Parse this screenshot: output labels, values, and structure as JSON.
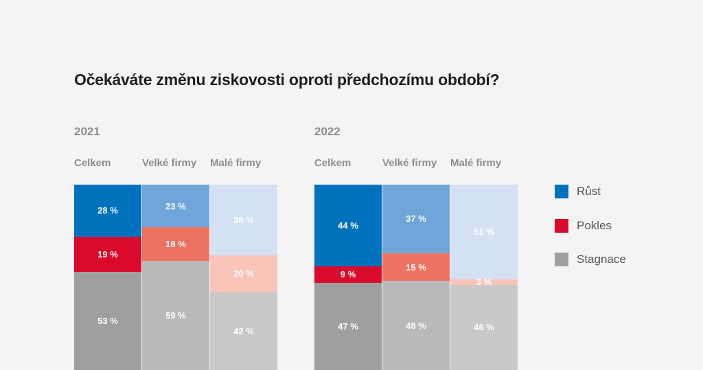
{
  "title": "Očekáváte změnu ziskovosti oproti předchozímu období?",
  "colors": {
    "rust": [
      "#0071bc",
      "#6fa6da",
      "#d3e1f3"
    ],
    "pokles": [
      "#d90a2c",
      "#ee7260",
      "#f9c5b9"
    ],
    "stagnace": [
      "#9f9f9f",
      "#b9b9b9",
      "#c9c9c9"
    ]
  },
  "legend": [
    {
      "label": "Růst",
      "color": "#0071bc"
    },
    {
      "label": "Pokles",
      "color": "#d90a2c"
    },
    {
      "label": "Stagnace",
      "color": "#9f9f9f"
    }
  ],
  "chart_data": [
    {
      "type": "bar",
      "stacked": true,
      "title": "2021",
      "categories": [
        "Celkem",
        "Velké firmy",
        "Malé firmy"
      ],
      "series": [
        {
          "name": "Růst",
          "values": [
            28,
            23,
            38
          ],
          "labels": [
            "28 %",
            "23 %",
            "38 %"
          ]
        },
        {
          "name": "Pokles",
          "values": [
            19,
            18,
            20
          ],
          "labels": [
            "19 %",
            "18 %",
            "20 %"
          ]
        },
        {
          "name": "Stagnace",
          "values": [
            53,
            59,
            42
          ],
          "labels": [
            "53 %",
            "59 %",
            "42 %"
          ]
        }
      ]
    },
    {
      "type": "bar",
      "stacked": true,
      "title": "2022",
      "categories": [
        "Celkem",
        "Velké firmy",
        "Malé firmy"
      ],
      "series": [
        {
          "name": "Růst",
          "values": [
            44,
            37,
            51
          ],
          "labels": [
            "44 %",
            "37 %",
            "51 %"
          ]
        },
        {
          "name": "Pokles",
          "values": [
            9,
            15,
            3
          ],
          "labels": [
            "9 %",
            "15 %",
            "3 %"
          ]
        },
        {
          "name": "Stagnace",
          "values": [
            47,
            48,
            46
          ],
          "labels": [
            "47 %",
            "48 %",
            "46 %"
          ]
        }
      ]
    }
  ]
}
